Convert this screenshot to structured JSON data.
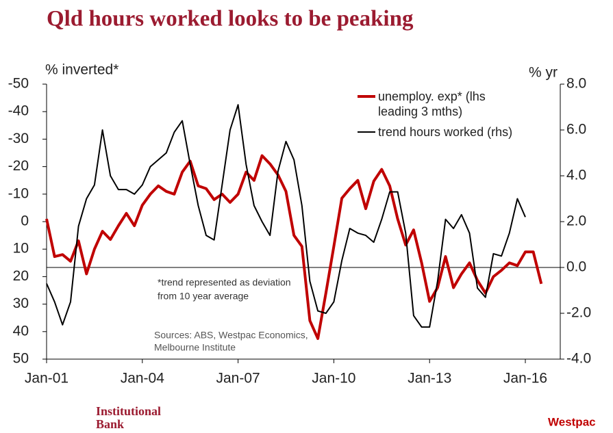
{
  "chart_data": {
    "type": "line",
    "title": "Qld hours worked looks to be peaking",
    "ylabel": "% inverted*",
    "y2label": "% yr",
    "x": [
      "Jan-01",
      "Apr-01",
      "Jul-01",
      "Oct-01",
      "Jan-02",
      "Apr-02",
      "Jul-02",
      "Oct-02",
      "Jan-03",
      "Apr-03",
      "Jul-03",
      "Oct-03",
      "Jan-04",
      "Apr-04",
      "Jul-04",
      "Oct-04",
      "Jan-05",
      "Apr-05",
      "Jul-05",
      "Oct-05",
      "Jan-06",
      "Apr-06",
      "Jul-06",
      "Oct-06",
      "Jan-07",
      "Apr-07",
      "Jul-07",
      "Oct-07",
      "Jan-08",
      "Apr-08",
      "Jul-08",
      "Oct-08",
      "Jan-09",
      "Apr-09",
      "Jul-09",
      "Oct-09",
      "Jan-10",
      "Apr-10",
      "Jul-10",
      "Oct-10",
      "Jan-11",
      "Apr-11",
      "Jul-11",
      "Oct-11",
      "Jan-12",
      "Apr-12",
      "Jul-12",
      "Oct-12",
      "Jan-13",
      "Apr-13",
      "Jul-13",
      "Oct-13",
      "Jan-14",
      "Apr-14",
      "Jul-14",
      "Oct-14",
      "Jan-15",
      "Apr-15",
      "Jul-15",
      "Oct-15",
      "Jan-16",
      "Apr-16",
      "Jul-16"
    ],
    "xticks": [
      "Jan-01",
      "Jan-04",
      "Jan-07",
      "Jan-10",
      "Jan-13",
      "Jan-16"
    ],
    "ylim": [
      -50,
      50
    ],
    "y_inverted": true,
    "yticks": [
      -50,
      -40,
      -30,
      -20,
      -10,
      0,
      10,
      20,
      30,
      40,
      50
    ],
    "y2lim": [
      -4,
      8
    ],
    "y2ticks": [
      {
        "value": 8,
        "label": "8.0"
      },
      {
        "value": 6,
        "label": "6.0"
      },
      {
        "value": 4,
        "label": "4.0"
      },
      {
        "value": 2,
        "label": "2.0"
      },
      {
        "value": 0,
        "label": "0.0"
      },
      {
        "value": -2,
        "label": "-2.0"
      },
      {
        "value": -4,
        "label": "-4.0"
      }
    ],
    "series": [
      {
        "name": "unemploy. exp* (lhs leading 3 mths)",
        "color": "#c00000",
        "width": 4,
        "values": [
          -1,
          12.7,
          12,
          14.4,
          7,
          19,
          10,
          3.5,
          6.5,
          1.5,
          -3,
          1.5,
          -6,
          -10,
          -13,
          -11,
          -10,
          -18,
          -22,
          -13,
          -12,
          -8,
          -10,
          -7,
          -10,
          -18,
          -15,
          -24,
          -21,
          -17,
          -11,
          5,
          9,
          36,
          42.5,
          26,
          9,
          -8.5,
          -12,
          -15,
          -4.7,
          -14.7,
          -19,
          -13,
          -1,
          8.5,
          3,
          15,
          29,
          24,
          12.7,
          24,
          19,
          15,
          21.4,
          26,
          20,
          17.7,
          15,
          16,
          11,
          11,
          22.6
        ]
      },
      {
        "name": "trend hours worked (rhs)",
        "color": "#000000",
        "width": 2,
        "axis": "y2",
        "values": [
          -0.7,
          -1.5,
          -2.5,
          -1.5,
          1.8,
          3,
          3.6,
          6,
          4,
          3.4,
          3.4,
          3.2,
          3.6,
          4.4,
          4.7,
          5,
          5.9,
          6.4,
          4.5,
          2.7,
          1.4,
          1.2,
          3.6,
          6,
          7.1,
          4.5,
          2.7,
          2,
          1.4,
          4.2,
          5.5,
          4.7,
          2.7,
          -0.6,
          -1.9,
          -2,
          -1.5,
          0.3,
          1.7,
          1.5,
          1.4,
          1.1,
          2.1,
          3.3,
          3.3,
          1.5,
          -2.1,
          -2.6,
          -2.6,
          -0.6,
          2.1,
          1.7,
          2.3,
          1.5,
          -0.9,
          -1.3,
          0.6,
          0.5,
          1.5,
          3,
          2.2,
          null,
          null
        ]
      }
    ],
    "annotations": [
      "*trend represented as deviation",
      "from 10 year average"
    ],
    "sources": [
      "Sources: ABS, Westpac Economics,",
      "Melbourne Institute"
    ],
    "footer": [
      "Institutional",
      "Bank"
    ],
    "logo": "Westpac"
  }
}
